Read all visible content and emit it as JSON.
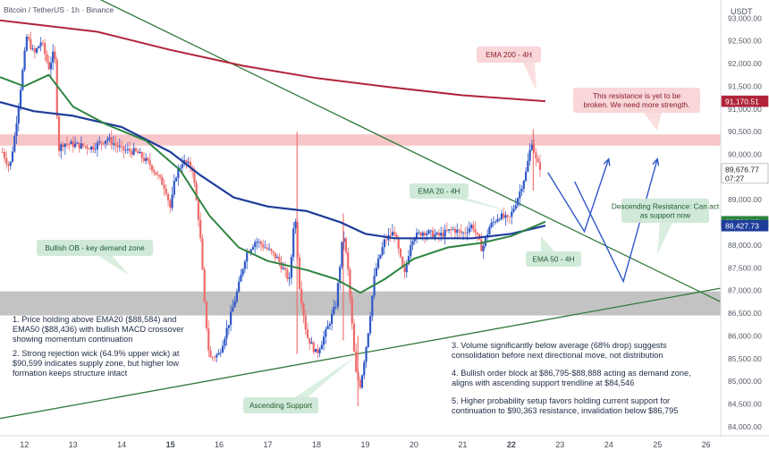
{
  "header": {
    "title": "Bitcoin / TetherUS · 1h · Binance",
    "currency": "USDT"
  },
  "colors": {
    "up_candle": "#2f58c8",
    "down_candle": "#f06a6a",
    "ema20": "#2e8540",
    "ema50": "#1e3d9a",
    "ema200": "#b0243a",
    "resistance_zone": "#f4bcbf",
    "demand_zone": "#bdbdbd",
    "trendline": "#2f7a3a",
    "callout_green": "#cde8d6",
    "callout_pink": "#f9d4d6"
  },
  "chart_data": {
    "type": "candlestick",
    "x_axis": {
      "ticks": [
        "12",
        "13",
        "14",
        "15",
        "16",
        "17",
        "18",
        "19",
        "20",
        "21",
        "22",
        "23",
        "24",
        "25",
        "26"
      ],
      "bold_ticks": [
        "15",
        "22"
      ],
      "range_days": [
        11.5,
        26.3
      ]
    },
    "y_axis": {
      "min": 83800,
      "max": 93400,
      "ticks": [
        84000,
        84500,
        85000,
        85500,
        86000,
        86500,
        87000,
        87500,
        88000,
        88500,
        89000,
        89500,
        90000,
        90500,
        91000,
        91500,
        92000,
        92500,
        93000
      ],
      "tick_labels": [
        "84,000.00",
        "84,500.00",
        "85,000.00",
        "85,500.00",
        "86,000.00",
        "86,500.00",
        "87,000.00",
        "87,500.00",
        "88,000.00",
        "88,500.00",
        "89,000.00",
        "89,500.00",
        "90,000.00",
        "90,500.00",
        "91,000.00",
        "91,500.00",
        "92,000.00",
        "92,500.00",
        "93,000.00"
      ]
    },
    "price_tags": [
      {
        "label": "91,170.51",
        "value": 91170,
        "color": "#b0243a"
      },
      {
        "label": "89,676.77",
        "sub": "07:27",
        "value": 89677,
        "color": "#ffffff"
      },
      {
        "label": "88,516.49",
        "value": 88516,
        "color": "#2e8540"
      },
      {
        "label": "88,427.73",
        "value": 88428,
        "color": "#1e3d9a"
      }
    ],
    "price_path": [
      {
        "d": 11.55,
        "v": 90050
      },
      {
        "d": 11.7,
        "v": 89700
      },
      {
        "d": 11.8,
        "v": 90400
      },
      {
        "d": 11.95,
        "v": 91700
      },
      {
        "d": 12.05,
        "v": 92600
      },
      {
        "d": 12.2,
        "v": 92200
      },
      {
        "d": 12.35,
        "v": 92500
      },
      {
        "d": 12.5,
        "v": 91900
      },
      {
        "d": 12.62,
        "v": 92300
      },
      {
        "d": 12.7,
        "v": 90100
      },
      {
        "d": 12.8,
        "v": 90250
      },
      {
        "d": 13.1,
        "v": 90200
      },
      {
        "d": 13.4,
        "v": 90150
      },
      {
        "d": 13.7,
        "v": 90350
      },
      {
        "d": 14.0,
        "v": 90100
      },
      {
        "d": 14.3,
        "v": 90050
      },
      {
        "d": 14.6,
        "v": 89750
      },
      {
        "d": 14.9,
        "v": 89250
      },
      {
        "d": 15.0,
        "v": 88800
      },
      {
        "d": 15.1,
        "v": 89500
      },
      {
        "d": 15.25,
        "v": 89850
      },
      {
        "d": 15.45,
        "v": 89700
      },
      {
        "d": 15.6,
        "v": 88400
      },
      {
        "d": 15.7,
        "v": 86700
      },
      {
        "d": 15.8,
        "v": 85500
      },
      {
        "d": 16.0,
        "v": 85600
      },
      {
        "d": 16.2,
        "v": 86300
      },
      {
        "d": 16.4,
        "v": 87100
      },
      {
        "d": 16.55,
        "v": 87800
      },
      {
        "d": 16.75,
        "v": 88100
      },
      {
        "d": 16.95,
        "v": 87950
      },
      {
        "d": 17.2,
        "v": 87700
      },
      {
        "d": 17.45,
        "v": 87200
      },
      {
        "d": 17.55,
        "v": 88800
      },
      {
        "d": 17.65,
        "v": 87100
      },
      {
        "d": 17.8,
        "v": 86000
      },
      {
        "d": 18.0,
        "v": 85600
      },
      {
        "d": 18.2,
        "v": 86100
      },
      {
        "d": 18.4,
        "v": 86700
      },
      {
        "d": 18.55,
        "v": 88300
      },
      {
        "d": 18.65,
        "v": 87400
      },
      {
        "d": 18.8,
        "v": 85200
      },
      {
        "d": 18.9,
        "v": 84900
      },
      {
        "d": 19.05,
        "v": 86000
      },
      {
        "d": 19.2,
        "v": 87400
      },
      {
        "d": 19.4,
        "v": 88100
      },
      {
        "d": 19.6,
        "v": 88300
      },
      {
        "d": 19.8,
        "v": 87300
      },
      {
        "d": 19.95,
        "v": 88150
      },
      {
        "d": 20.2,
        "v": 88300
      },
      {
        "d": 20.5,
        "v": 88200
      },
      {
        "d": 20.8,
        "v": 88350
      },
      {
        "d": 21.0,
        "v": 88250
      },
      {
        "d": 21.2,
        "v": 88450
      },
      {
        "d": 21.4,
        "v": 87900
      },
      {
        "d": 21.55,
        "v": 88400
      },
      {
        "d": 21.75,
        "v": 88650
      },
      {
        "d": 21.95,
        "v": 88550
      },
      {
        "d": 22.15,
        "v": 89100
      },
      {
        "d": 22.3,
        "v": 89600
      },
      {
        "d": 22.42,
        "v": 90300
      },
      {
        "d": 22.52,
        "v": 89800
      },
      {
        "d": 22.62,
        "v": 89677
      }
    ],
    "spike_candles": [
      {
        "d": 17.6,
        "high": 90500,
        "low": 85600
      },
      {
        "d": 18.55,
        "high": 88700,
        "low": 85900
      },
      {
        "d": 18.85,
        "high": 86000,
        "low": 84450
      },
      {
        "d": 22.45,
        "high": 90550,
        "low": 89200
      }
    ],
    "ema200": [
      {
        "d": 11.5,
        "v": 92950
      },
      {
        "d": 13.5,
        "v": 92700
      },
      {
        "d": 15.0,
        "v": 92300
      },
      {
        "d": 16.5,
        "v": 91950
      },
      {
        "d": 18.0,
        "v": 91680
      },
      {
        "d": 19.5,
        "v": 91480
      },
      {
        "d": 21.0,
        "v": 91300
      },
      {
        "d": 22.7,
        "v": 91170
      }
    ],
    "ema50": [
      {
        "d": 11.5,
        "v": 91150
      },
      {
        "d": 12.2,
        "v": 90950
      },
      {
        "d": 13.0,
        "v": 90850
      },
      {
        "d": 14.0,
        "v": 90600
      },
      {
        "d": 15.0,
        "v": 90050
      },
      {
        "d": 15.6,
        "v": 89550
      },
      {
        "d": 16.3,
        "v": 89050
      },
      {
        "d": 17.0,
        "v": 88850
      },
      {
        "d": 17.8,
        "v": 88750
      },
      {
        "d": 18.5,
        "v": 88500
      },
      {
        "d": 19.0,
        "v": 88250
      },
      {
        "d": 19.6,
        "v": 88150
      },
      {
        "d": 20.4,
        "v": 88150
      },
      {
        "d": 21.2,
        "v": 88150
      },
      {
        "d": 22.0,
        "v": 88250
      },
      {
        "d": 22.7,
        "v": 88428
      }
    ],
    "ema20": [
      {
        "d": 11.5,
        "v": 91700
      },
      {
        "d": 12.0,
        "v": 91500
      },
      {
        "d": 12.5,
        "v": 91750
      },
      {
        "d": 13.0,
        "v": 91050
      },
      {
        "d": 13.7,
        "v": 90650
      },
      {
        "d": 14.5,
        "v": 90300
      },
      {
        "d": 15.2,
        "v": 89650
      },
      {
        "d": 15.8,
        "v": 88650
      },
      {
        "d": 16.4,
        "v": 87950
      },
      {
        "d": 17.0,
        "v": 87650
      },
      {
        "d": 17.8,
        "v": 87450
      },
      {
        "d": 18.4,
        "v": 87250
      },
      {
        "d": 18.9,
        "v": 86950
      },
      {
        "d": 19.4,
        "v": 87250
      },
      {
        "d": 20.0,
        "v": 87700
      },
      {
        "d": 20.7,
        "v": 87950
      },
      {
        "d": 21.4,
        "v": 88050
      },
      {
        "d": 22.0,
        "v": 88200
      },
      {
        "d": 22.7,
        "v": 88516
      }
    ],
    "zones": [
      {
        "name": "resistance",
        "from": 90250,
        "to": 90380,
        "start_d": 11.5
      },
      {
        "name": "demand",
        "from": 86450,
        "to": 86980,
        "start_d": 11.5
      }
    ],
    "trendlines": [
      {
        "name": "descending",
        "from": {
          "d": 13.1,
          "v": 93650
        },
        "to": {
          "d": 26.3,
          "v": 86750
        }
      },
      {
        "name": "ascending",
        "from": {
          "d": 11.5,
          "v": 84180
        },
        "to": {
          "d": 26.3,
          "v": 87050
        }
      }
    ],
    "projection": [
      {
        "d": 22.75,
        "v": 89600
      },
      {
        "d": 23.5,
        "v": 88300
      },
      {
        "d": 24.0,
        "v": 89900
      },
      {
        "d": 23.3,
        "v": 89400
      },
      {
        "d": 24.3,
        "v": 87200
      },
      {
        "d": 25.0,
        "v": 89900
      }
    ],
    "annotations": {
      "ema200_label": "EMA 200 - 4H",
      "ema20_label": "EMA 20 - 4H",
      "ema50_label": "EMA 50 - 4H",
      "resistance_note": "This resistance is yet to be broken. We need more strength.",
      "descending_label": "Descending Resistance: Can act as support now",
      "demand_label": "Bullish OB - key demand zone",
      "ascending_label": "Ascending Support"
    }
  },
  "notes_left": [
    "1. Price holding above EMA20 ($88,584) and EMA50 ($88,436) with bullish MACD crossover showing momentum continuation",
    "2. Strong rejection wick (64.9% upper wick) at $90,599 indicates supply zone, but higher low formation keeps structure intact"
  ],
  "notes_right": [
    "3. Volume significantly below average (68% drop) suggests consolidation before next directional move, not distribution",
    "4. Bullish order block at $86,795-$88,888 acting as demand zone, aligns with ascending support trendline at $84,546",
    "5. Higher probability setup favors holding current support for continuation to $90,363 resistance, invalidation below $86,795"
  ]
}
